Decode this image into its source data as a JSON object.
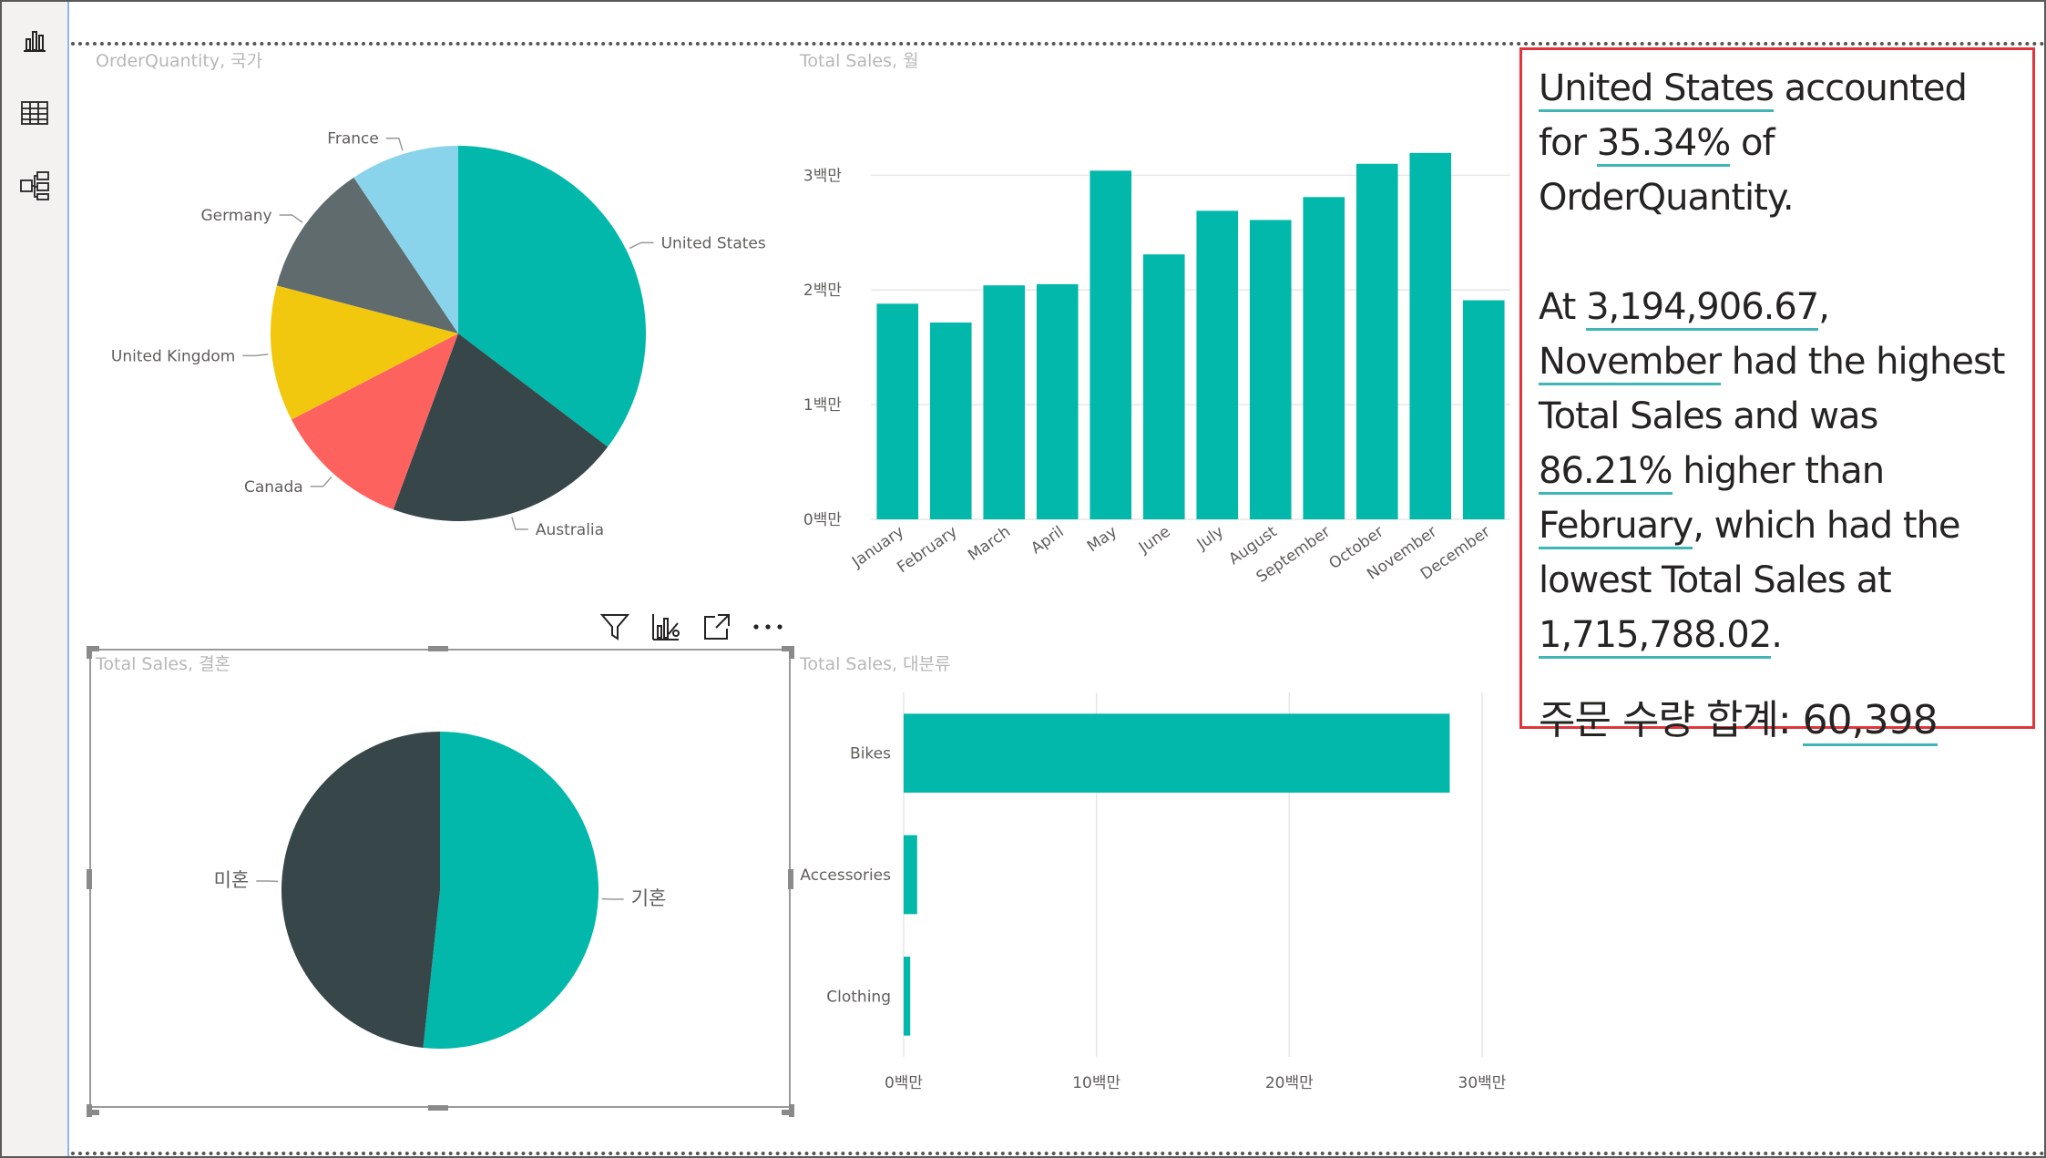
{
  "pie1": {
    "title": "OrderQuantity, 국가",
    "labels": [
      "United States",
      "Australia",
      "Canada",
      "United Kingdom",
      "Germany",
      "France"
    ]
  },
  "column": {
    "title": "Total Sales, 월"
  },
  "pie2": {
    "title": "Total Sales, 결혼",
    "labels": [
      "기혼",
      "미혼"
    ]
  },
  "bar": {
    "title": "Total Sales, 대분류"
  },
  "narrative": {
    "p1_a": "United States",
    "p1_b": " accounted for ",
    "p1_c": "35.34%",
    "p1_d": " of OrderQuantity.",
    "p2_a": "At ",
    "p2_b": "3,194,906.67",
    "p2_c": ", ",
    "p2_d": "November",
    "p2_e": " had the highest Total Sales and was ",
    "p2_f": "86.21%",
    "p2_g": " higher than ",
    "p2_h": "February",
    "p2_i": ", which had the lowest Total Sales at ",
    "p2_j": "1,715,788.02",
    "p2_k": ".",
    "kr_label": "주문 수량 합계",
    "kr_colon": ": ",
    "kr_value": "60,398"
  },
  "colors": {
    "teal": "#01b8aa",
    "dark": "#374649",
    "red": "#fd625e",
    "yellow": "#f2c80f",
    "gray": "#5f6b6d",
    "lightblue": "#8ad4eb",
    "accent_border": "#e0353b"
  },
  "icons": {
    "report_view": "bar-chart-icon",
    "data_view": "table-icon",
    "model_view": "model-icon",
    "filter": "filter-icon",
    "analytics": "analytics-icon",
    "focus": "focus-mode-icon",
    "more": "more-options-icon"
  },
  "chart_data": [
    {
      "type": "pie",
      "title": "OrderQuantity, 국가",
      "categories": [
        "United States",
        "Australia",
        "Canada",
        "United Kingdom",
        "Germany",
        "France"
      ],
      "values": [
        35.34,
        20.3,
        11.8,
        11.7,
        11.5,
        9.4
      ],
      "colors": [
        "#01b8aa",
        "#374649",
        "#fd625e",
        "#f2c80f",
        "#5f6b6d",
        "#8ad4eb"
      ]
    },
    {
      "type": "bar",
      "title": "Total Sales, 월",
      "categories": [
        "January",
        "February",
        "March",
        "April",
        "May",
        "June",
        "July",
        "August",
        "September",
        "October",
        "November",
        "December"
      ],
      "values": [
        1880000,
        1715788.02,
        2040000,
        2050000,
        3040000,
        2310000,
        2690000,
        2610000,
        2810000,
        3100000,
        3194906.67,
        1910000
      ],
      "yticks": [
        "0백만",
        "1백만",
        "2백만",
        "3백만"
      ],
      "ylim": [
        0,
        3400000
      ],
      "color": "#01b8aa",
      "grid": true
    },
    {
      "type": "pie",
      "title": "Total Sales, 결혼",
      "categories": [
        "기혼",
        "미혼"
      ],
      "values": [
        51.7,
        48.3
      ],
      "colors": [
        "#01b8aa",
        "#374649"
      ]
    },
    {
      "type": "bar",
      "orientation": "horizontal",
      "title": "Total Sales, 대분류",
      "categories": [
        "Bikes",
        "Accessories",
        "Clothing"
      ],
      "values": [
        28320000,
        700000,
        340000
      ],
      "xticks": [
        "0백만",
        "10백만",
        "20백만",
        "30백만"
      ],
      "xlim": [
        0,
        30000000
      ],
      "color": "#01b8aa",
      "grid": true
    }
  ]
}
